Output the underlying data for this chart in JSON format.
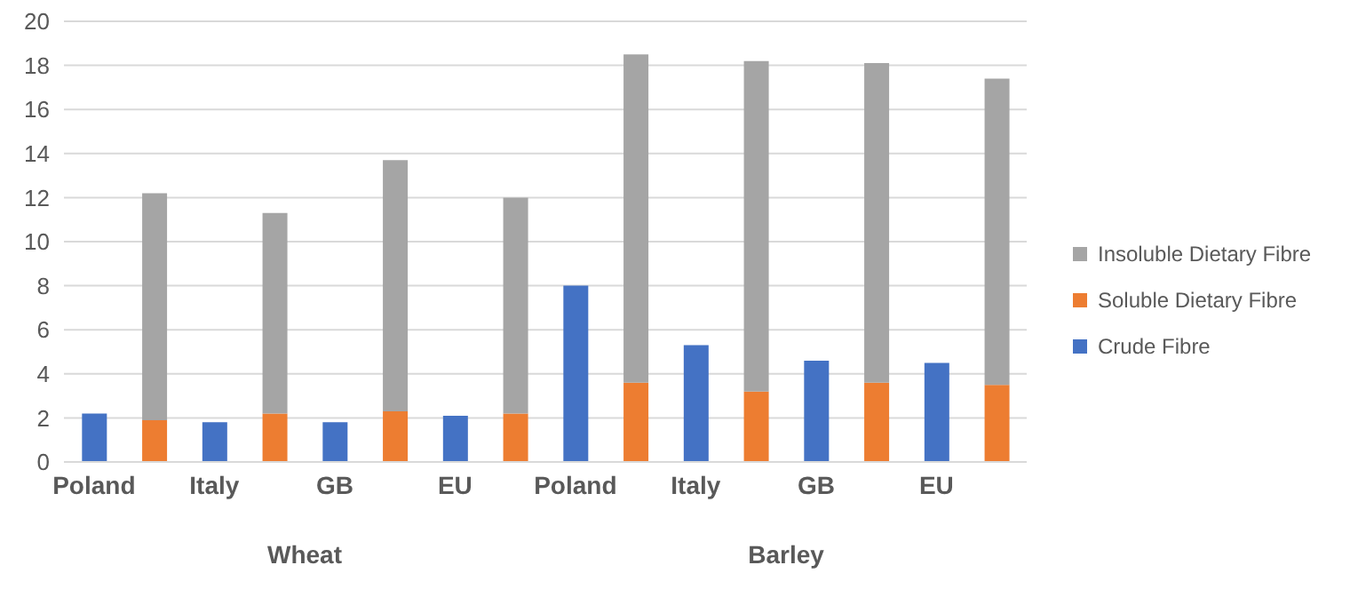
{
  "chart_data": {
    "type": "bar",
    "stacked": true,
    "categories": [
      "Poland",
      null,
      "Italy",
      null,
      "GB",
      null,
      "EU",
      null,
      "Poland",
      null,
      "Italy",
      null,
      "GB",
      null,
      "EU",
      null
    ],
    "series": [
      {
        "name": "Crude Fibre",
        "color": "#4472c4",
        "values": [
          2.2,
          null,
          1.8,
          null,
          1.8,
          null,
          2.1,
          null,
          8.0,
          null,
          5.3,
          null,
          4.6,
          null,
          4.5,
          null
        ]
      },
      {
        "name": "Soluble Dietary Fibre",
        "color": "#ed7d31",
        "values": [
          null,
          1.9,
          null,
          2.2,
          null,
          2.3,
          null,
          2.2,
          null,
          3.6,
          null,
          3.2,
          null,
          3.6,
          null,
          3.5
        ]
      },
      {
        "name": "Insoluble Dietary Fibre",
        "color": "#a5a5a5",
        "values": [
          null,
          10.3,
          null,
          9.1,
          null,
          11.4,
          null,
          9.8,
          null,
          14.9,
          null,
          15.0,
          null,
          14.5,
          null,
          13.9
        ]
      }
    ],
    "annotations": [
      "Wheat",
      "Barley"
    ],
    "ylim": [
      0,
      20
    ],
    "yticks": [
      0,
      2,
      4,
      6,
      8,
      10,
      12,
      14,
      16,
      18,
      20
    ],
    "grid": "y",
    "legend": "right"
  }
}
